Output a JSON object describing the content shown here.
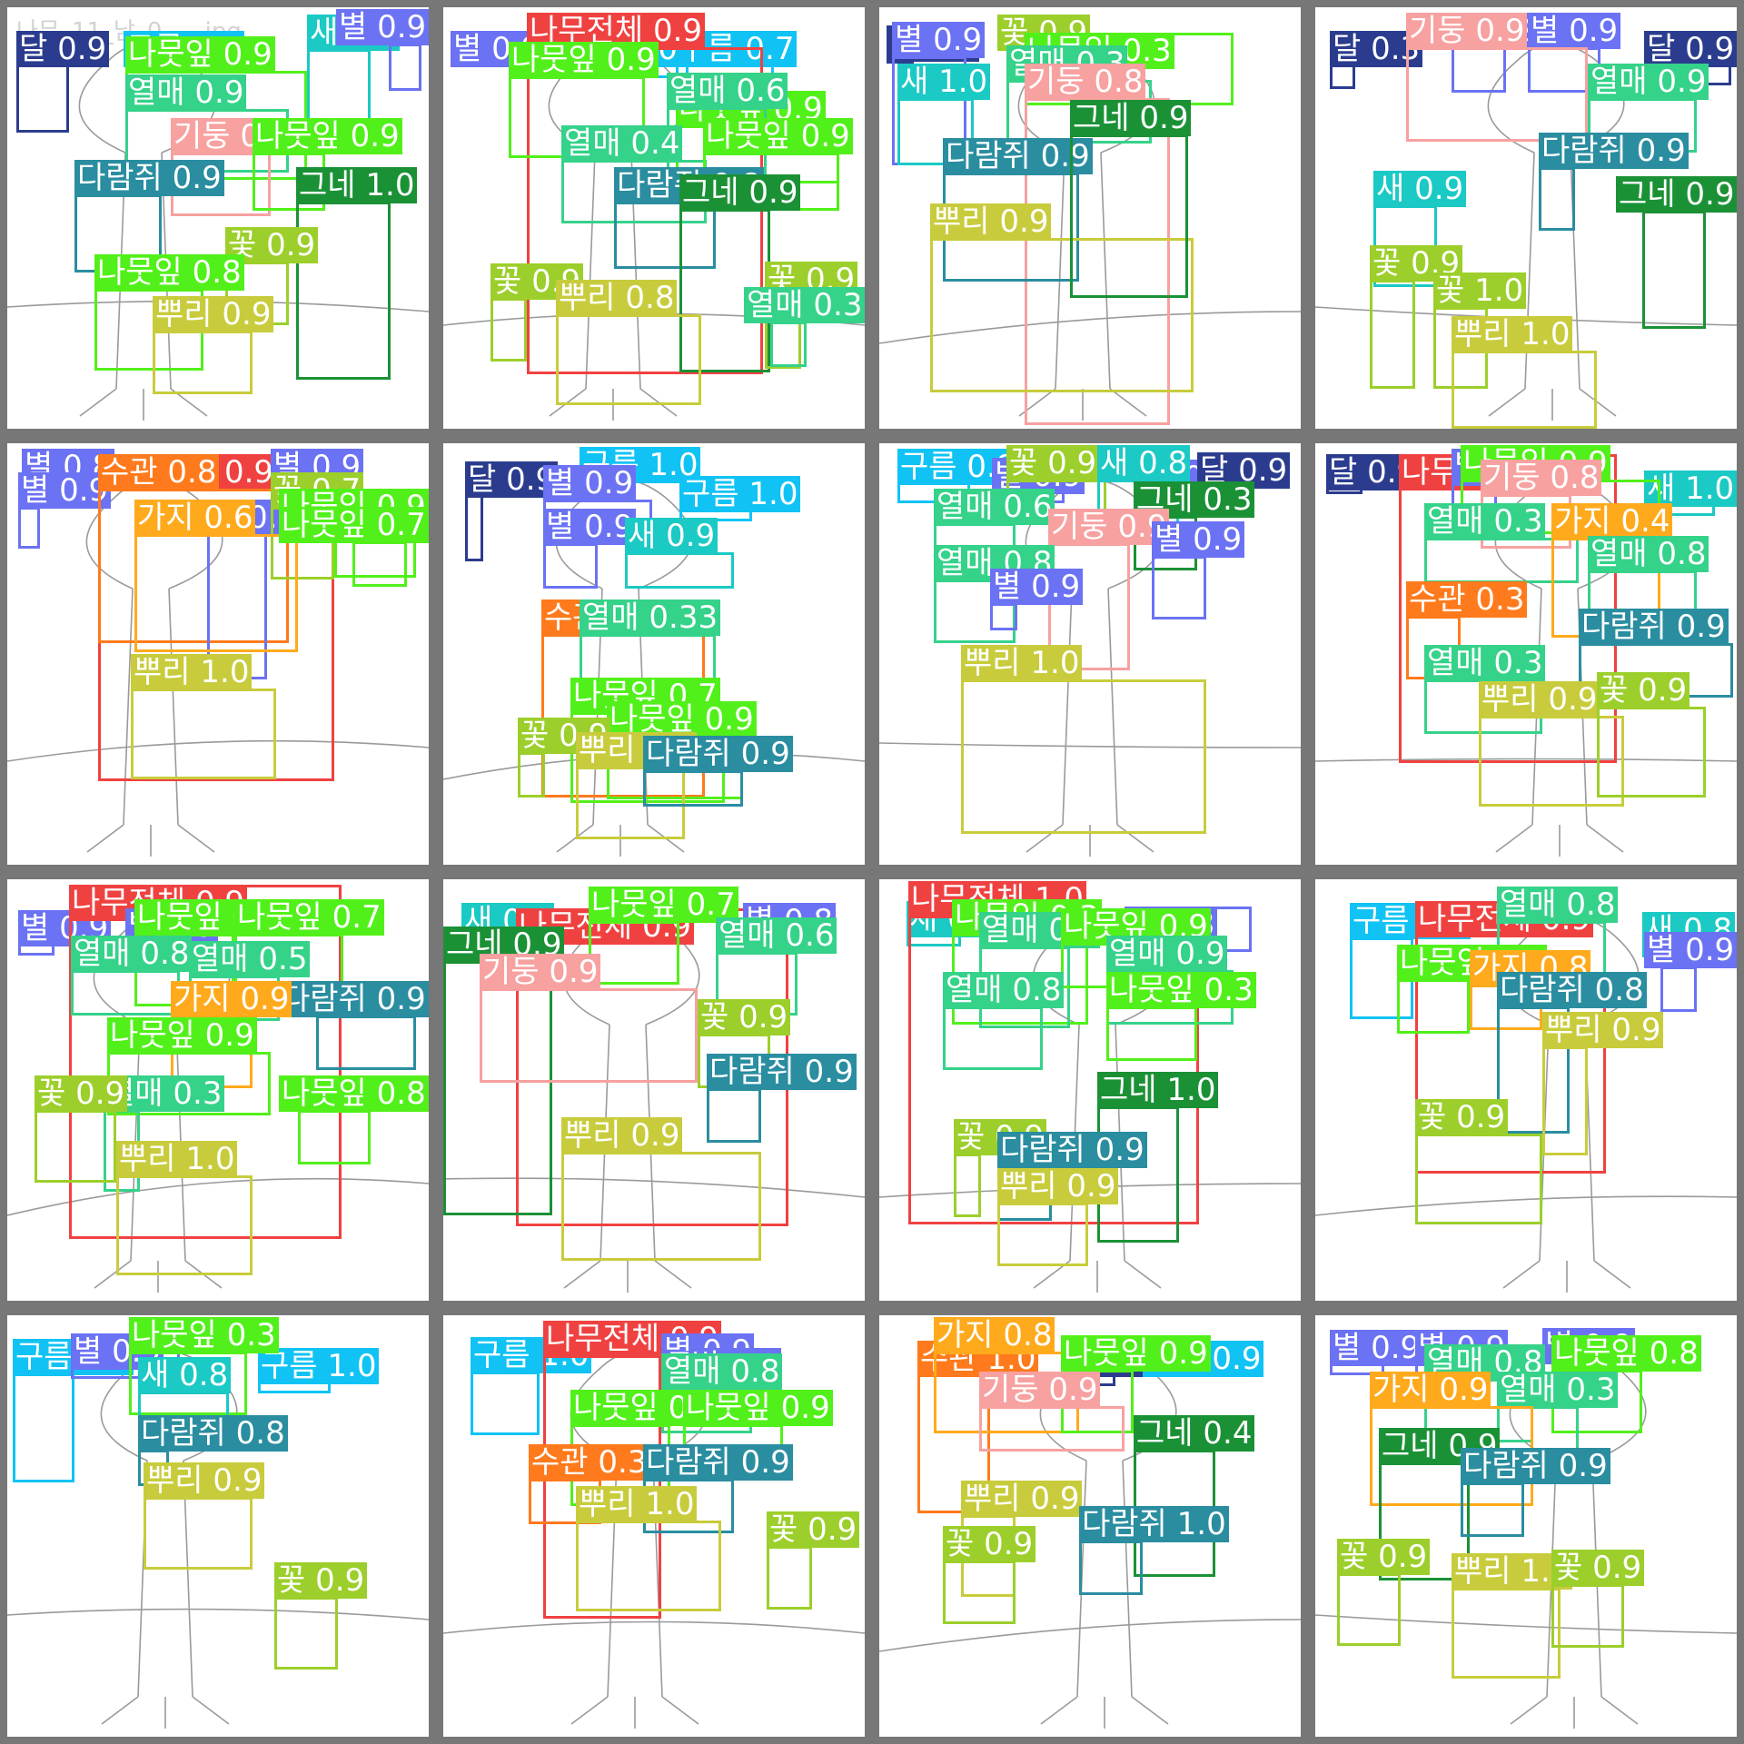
{
  "colors": {
    "나무전체": "#f04141",
    "기둥": "#f7a1a1",
    "수관": "#ff7a1c",
    "가지": "#ffaa1c",
    "뿌리": "#c8cc3c",
    "나뭇잎": "#52f01a",
    "꽃": "#9ccf2b",
    "열매": "#35d28a",
    "그네": "#1b9136",
    "새": "#1bc9c5",
    "다람쥐": "#2a8da0",
    "구름": "#11c3f4",
    "달": "#2b3c8f",
    "별": "#6b72f3"
  },
  "tiles": [
    {
      "filename": "나무_11_남_0___.jpg",
      "detections": [
        {
          "label": "달",
          "score": "0.9"
        },
        {
          "label": "구름",
          "score": "0.9"
        },
        {
          "label": "새",
          "score": "1.0"
        },
        {
          "label": "별",
          "score": "0.9"
        },
        {
          "label": "나뭇잎",
          "score": "0.9"
        },
        {
          "label": "열매",
          "score": "0.9"
        },
        {
          "label": "기둥",
          "score": "0.9"
        },
        {
          "label": "나뭇잎",
          "score": "0.9"
        },
        {
          "label": "다람쥐",
          "score": "0.9"
        },
        {
          "label": "그네",
          "score": "1.0"
        },
        {
          "label": "꽃",
          "score": "0.9"
        },
        {
          "label": "나뭇잎",
          "score": "0.8"
        },
        {
          "label": "뿌리",
          "score": "0.9"
        }
      ]
    },
    {
      "filename": "",
      "detections": [
        {
          "label": "별",
          "score": "0.9"
        },
        {
          "label": "구름",
          "score": "0.9"
        },
        {
          "label": "구름",
          "score": "0.7"
        },
        {
          "label": "나무전체",
          "score": "0.9"
        },
        {
          "label": "나뭇잎",
          "score": "0.9"
        },
        {
          "label": "나뭇잎",
          "score": "0.9"
        },
        {
          "label": "열매",
          "score": "0.6"
        },
        {
          "label": "열매",
          "score": "0.4"
        },
        {
          "label": "나뭇잎",
          "score": "0.9"
        },
        {
          "label": "다람쥐",
          "score": "0.8"
        },
        {
          "label": "그네",
          "score": "0.9"
        },
        {
          "label": "꽃",
          "score": "0.9"
        },
        {
          "label": "뿌리",
          "score": "0.8"
        },
        {
          "label": "꽃",
          "score": "0.9"
        },
        {
          "label": "열매",
          "score": "0.3"
        }
      ]
    },
    {
      "filename": "",
      "detections": [
        {
          "label": "달",
          "score": "0.9"
        },
        {
          "label": "꽃",
          "score": "0.9"
        },
        {
          "label": "별",
          "score": "0.9"
        },
        {
          "label": "새",
          "score": "1.0"
        },
        {
          "label": "나뭇잎",
          "score": "0.3"
        },
        {
          "label": "열매",
          "score": "0.3"
        },
        {
          "label": "기둥",
          "score": "0.8"
        },
        {
          "label": "다람쥐",
          "score": "0.9"
        },
        {
          "label": "뿌리",
          "score": "0.9"
        },
        {
          "label": "그네",
          "score": "0.9"
        }
      ]
    },
    {
      "filename": "",
      "detections": [
        {
          "label": "달",
          "score": "0.3"
        },
        {
          "label": "별",
          "score": "0.9"
        },
        {
          "label": "별",
          "score": "0.9"
        },
        {
          "label": "달",
          "score": "0.9"
        },
        {
          "label": "열매",
          "score": "0.9"
        },
        {
          "label": "기둥",
          "score": "0.9"
        },
        {
          "label": "다람쥐",
          "score": "0.9"
        },
        {
          "label": "새",
          "score": "0.9"
        },
        {
          "label": "그네",
          "score": "0.9"
        },
        {
          "label": "꽃",
          "score": "0.9"
        },
        {
          "label": "꽃",
          "score": "1.0"
        },
        {
          "label": "뿌리",
          "score": "1.0"
        }
      ]
    },
    {
      "filename": "",
      "detections": [
        {
          "label": "별",
          "score": "0.8"
        },
        {
          "label": "나무전체",
          "score": "0.9"
        },
        {
          "label": "별",
          "score": "0.9"
        },
        {
          "label": "별",
          "score": "0.9"
        },
        {
          "label": "수관",
          "score": "0.8"
        },
        {
          "label": "별",
          "score": "0.8"
        },
        {
          "label": "꽃",
          "score": "0.7"
        },
        {
          "label": "가지",
          "score": "0.6"
        },
        {
          "label": "나뭇잎",
          "score": "0.9"
        },
        {
          "label": "나뭇잎",
          "score": "0.7"
        },
        {
          "label": "뿌리",
          "score": "1.0"
        }
      ]
    },
    {
      "filename": "",
      "detections": [
        {
          "label": "달",
          "score": "0.9"
        },
        {
          "label": "구름",
          "score": "1.0"
        },
        {
          "label": "별",
          "score": "0.9"
        },
        {
          "label": "구름",
          "score": "1.0"
        },
        {
          "label": "별",
          "score": "0.9"
        },
        {
          "label": "새",
          "score": "0.9"
        },
        {
          "label": "수관",
          "score": "1.0"
        },
        {
          "label": "열매",
          "score": "0.33"
        },
        {
          "label": "나뭇잎",
          "score": "0.7"
        },
        {
          "label": "나뭇잎",
          "score": "0.9"
        },
        {
          "label": "꽃",
          "score": "0.9"
        },
        {
          "label": "뿌리",
          "score": "0.9"
        },
        {
          "label": "다람쥐",
          "score": "0.9"
        }
      ]
    },
    {
      "filename": "",
      "detections": [
        {
          "label": "구름",
          "score": "0.9"
        },
        {
          "label": "별",
          "score": "0.9"
        },
        {
          "label": "별",
          "score": "0.9"
        },
        {
          "label": "달",
          "score": "0.9"
        },
        {
          "label": "꽃",
          "score": "0.9"
        },
        {
          "label": "새",
          "score": "0.8"
        },
        {
          "label": "그네",
          "score": "0.3"
        },
        {
          "label": "열매",
          "score": "0.6"
        },
        {
          "label": "기둥",
          "score": "0.9"
        },
        {
          "label": "별",
          "score": "0.9"
        },
        {
          "label": "열매",
          "score": "0.8"
        },
        {
          "label": "별",
          "score": "0.9"
        },
        {
          "label": "뿌리",
          "score": "1.0"
        }
      ]
    },
    {
      "filename": "",
      "detections": [
        {
          "label": "달",
          "score": "0.9"
        },
        {
          "label": "나무전체",
          "score": "0.9"
        },
        {
          "label": "새",
          "score": "1.0"
        },
        {
          "label": "별",
          "score": "0.9"
        },
        {
          "label": "나뭇잎",
          "score": "0.9"
        },
        {
          "label": "기둥",
          "score": "0.8"
        },
        {
          "label": "열매",
          "score": "0.3"
        },
        {
          "label": "가지",
          "score": "0.4"
        },
        {
          "label": "열매",
          "score": "0.8"
        },
        {
          "label": "수관",
          "score": "0.3"
        },
        {
          "label": "다람쥐",
          "score": "0.9"
        },
        {
          "label": "열매",
          "score": "0.3"
        },
        {
          "label": "뿌리",
          "score": "0.9"
        },
        {
          "label": "꽃",
          "score": "0.9"
        }
      ]
    },
    {
      "filename": "",
      "detections": [
        {
          "label": "별",
          "score": "0.9"
        },
        {
          "label": "나무전체",
          "score": "0.9"
        },
        {
          "label": "별",
          "score": "0.9"
        },
        {
          "label": "나뭇잎",
          "score": "0.6"
        },
        {
          "label": "나뭇잎",
          "score": "0.7"
        },
        {
          "label": "열매",
          "score": "0.8"
        },
        {
          "label": "열매",
          "score": "0.5"
        },
        {
          "label": "다람쥐",
          "score": "0.9"
        },
        {
          "label": "가지",
          "score": "0.9"
        },
        {
          "label": "나뭇잎",
          "score": "0.9"
        },
        {
          "label": "열매",
          "score": "0.3"
        },
        {
          "label": "나뭇잎",
          "score": "0.8"
        },
        {
          "label": "꽃",
          "score": "0.9"
        },
        {
          "label": "뿌리",
          "score": "1.0"
        }
      ]
    },
    {
      "filename": "",
      "detections": [
        {
          "label": "새",
          "score": "0.9"
        },
        {
          "label": "나무전체",
          "score": "0.9"
        },
        {
          "label": "별",
          "score": "0.8"
        },
        {
          "label": "나뭇잎",
          "score": "0.7"
        },
        {
          "label": "열매",
          "score": "0.6"
        },
        {
          "label": "그네",
          "score": "0.9"
        },
        {
          "label": "기둥",
          "score": "0.9"
        },
        {
          "label": "꽃",
          "score": "0.9"
        },
        {
          "label": "다람쥐",
          "score": "0.9"
        },
        {
          "label": "뿌리",
          "score": "0.9"
        }
      ]
    },
    {
      "filename": "",
      "detections": [
        {
          "label": "새",
          "score": "0.9"
        },
        {
          "label": "나무전체",
          "score": "1.0"
        },
        {
          "label": "별",
          "score": "0.8"
        },
        {
          "label": "나뭇잎",
          "score": "0.3"
        },
        {
          "label": "열매",
          "score": "0.7"
        },
        {
          "label": "나뭇잎",
          "score": "0.9"
        },
        {
          "label": "열매",
          "score": "0.9"
        },
        {
          "label": "열매",
          "score": "0.8"
        },
        {
          "label": "나뭇잎",
          "score": "0.3"
        },
        {
          "label": "그네",
          "score": "1.0"
        },
        {
          "label": "꽃",
          "score": "0.9"
        },
        {
          "label": "다람쥐",
          "score": "0.9"
        },
        {
          "label": "뿌리",
          "score": "0.9"
        }
      ]
    },
    {
      "filename": "",
      "detections": [
        {
          "label": "구름",
          "score": "1.0"
        },
        {
          "label": "나무전체",
          "score": "0.9"
        },
        {
          "label": "열매",
          "score": "0.8"
        },
        {
          "label": "새",
          "score": "0.8"
        },
        {
          "label": "별",
          "score": "0.9"
        },
        {
          "label": "나뭇잎",
          "score": "0.9"
        },
        {
          "label": "가지",
          "score": "0.8"
        },
        {
          "label": "다람쥐",
          "score": "0.8"
        },
        {
          "label": "꽃",
          "score": "0.9"
        },
        {
          "label": "뿌리",
          "score": "0.9"
        }
      ]
    },
    {
      "filename": "",
      "detections": [
        {
          "label": "구름",
          "score": "0.9"
        },
        {
          "label": "별",
          "score": "0.9"
        },
        {
          "label": "구름",
          "score": "1.0"
        },
        {
          "label": "나뭇잎",
          "score": "0.3"
        },
        {
          "label": "새",
          "score": "0.8"
        },
        {
          "label": "다람쥐",
          "score": "0.8"
        },
        {
          "label": "뿌리",
          "score": "0.9"
        },
        {
          "label": "꽃",
          "score": "0.9"
        }
      ]
    },
    {
      "filename": "",
      "detections": [
        {
          "label": "구름",
          "score": "1.0"
        },
        {
          "label": "나무전체",
          "score": "0.9"
        },
        {
          "label": "별",
          "score": "0.9"
        },
        {
          "label": "별",
          "score": "0.9"
        },
        {
          "label": "열매",
          "score": "0.8"
        },
        {
          "label": "나뭇잎",
          "score": "0.8"
        },
        {
          "label": "나뭇잎",
          "score": "0.9"
        },
        {
          "label": "수관",
          "score": "0.3"
        },
        {
          "label": "다람쥐",
          "score": "0.9"
        },
        {
          "label": "뿌리",
          "score": "1.0"
        },
        {
          "label": "꽃",
          "score": "0.9"
        }
      ]
    },
    {
      "filename": "",
      "detections": [
        {
          "label": "수관",
          "score": "1.0"
        },
        {
          "label": "달",
          "score": "0.9"
        },
        {
          "label": "구름",
          "score": "0.9"
        },
        {
          "label": "가지",
          "score": "0.8"
        },
        {
          "label": "나뭇잎",
          "score": "0.9"
        },
        {
          "label": "기둥",
          "score": "0.9"
        },
        {
          "label": "그네",
          "score": "0.4"
        },
        {
          "label": "뿌리",
          "score": "0.9"
        },
        {
          "label": "꽃",
          "score": "0.9"
        },
        {
          "label": "다람쥐",
          "score": "1.0"
        }
      ]
    },
    {
      "filename": "",
      "detections": [
        {
          "label": "별",
          "score": "0.9"
        },
        {
          "label": "별",
          "score": "0.9"
        },
        {
          "label": "별",
          "score": "0.9"
        },
        {
          "label": "열매",
          "score": "0.8"
        },
        {
          "label": "나뭇잎",
          "score": "0.8"
        },
        {
          "label": "열매",
          "score": "0.3"
        },
        {
          "label": "가지",
          "score": "0.9"
        },
        {
          "label": "그네",
          "score": "0.9"
        },
        {
          "label": "다람쥐",
          "score": "0.9"
        },
        {
          "label": "꽃",
          "score": "0.9"
        },
        {
          "label": "뿌리",
          "score": "1.0"
        },
        {
          "label": "꽃",
          "score": "0.9"
        }
      ]
    }
  ]
}
